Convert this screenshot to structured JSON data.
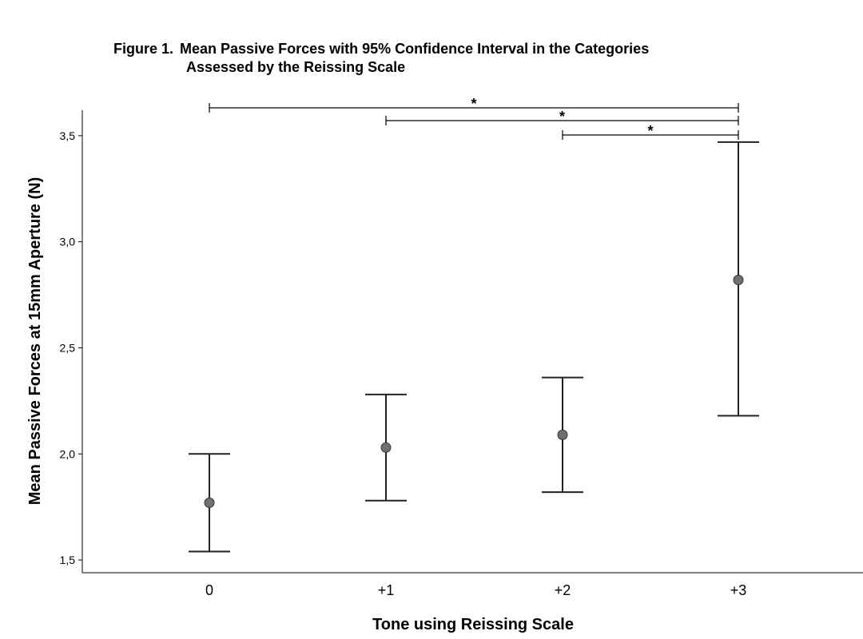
{
  "figure": {
    "label": "Figure 1.",
    "title_line1": "Mean Passive Forces with 95% Confidence Interval in the Categories",
    "title_line2": "Assessed by the Reissing Scale"
  },
  "chart_data": {
    "type": "errorbar",
    "title": "Figure 1. Mean Passive Forces with 95% Confidence Interval in the Categories Assessed by the Reissing Scale",
    "xlabel": "Tone using Reissing Scale",
    "ylabel": "Mean Passive Forces at 15mm Aperture (N)",
    "categories": [
      "0",
      "+1",
      "+2",
      "+3"
    ],
    "means": [
      1.77,
      2.03,
      2.09,
      2.82
    ],
    "ci_lower": [
      1.54,
      1.78,
      1.82,
      2.18
    ],
    "ci_upper": [
      2.0,
      2.28,
      2.36,
      3.47
    ],
    "ylim": [
      1.44,
      3.62
    ],
    "yticks": [
      1.5,
      2.0,
      2.5,
      3.0,
      3.5
    ],
    "ytick_labels": [
      "1,5",
      "2,0",
      "2,5",
      "3,0",
      "3,5"
    ],
    "grid": false,
    "significance": [
      {
        "from": "0",
        "to": "+3",
        "label": "*"
      },
      {
        "from": "+1",
        "to": "+3",
        "label": "*"
      },
      {
        "from": "+2",
        "to": "+3",
        "label": "*"
      }
    ]
  }
}
